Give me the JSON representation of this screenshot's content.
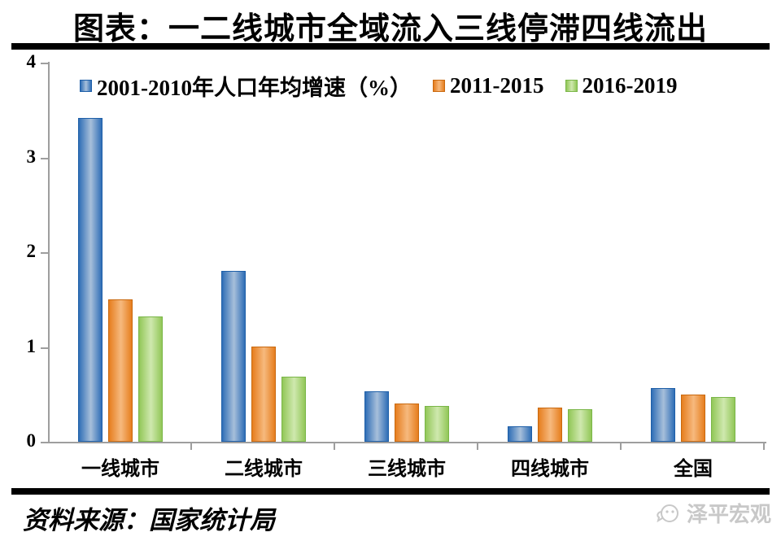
{
  "title": "图表：一二线城市全域流入三线停滞四线流出",
  "source": "资料来源：国家统计局",
  "brand": {
    "name": "泽平宏观",
    "icon": "chat-logo-icon"
  },
  "palette": {
    "blue": {
      "border": "#1e5fa8",
      "edge": "#2f6eb6",
      "mid": "#a7bfda"
    },
    "orange": {
      "border": "#c9690f",
      "edge": "#e67e1e",
      "mid": "#f6b97e"
    },
    "green": {
      "border": "#7ab648",
      "edge": "#92c758",
      "mid": "#cfe8ae"
    },
    "axis": "#9e9e9e",
    "rule": "#000000",
    "logo_gray": "#c8c8c8"
  },
  "chart_data": {
    "type": "bar",
    "title": "图表：一二线城市全域流入三线停滞四线流出",
    "categories": [
      "一线城市",
      "二线城市",
      "三线城市",
      "四线城市",
      "全国"
    ],
    "series": [
      {
        "name": "2001-2010年人口年均增速（%）",
        "color": "blue",
        "values": [
          3.42,
          1.8,
          0.53,
          0.16,
          0.57
        ]
      },
      {
        "name": "2011-2015",
        "color": "orange",
        "values": [
          1.5,
          1.0,
          0.4,
          0.36,
          0.5
        ]
      },
      {
        "name": "2016-2019",
        "color": "green",
        "values": [
          1.32,
          0.69,
          0.38,
          0.34,
          0.47
        ]
      }
    ],
    "xlabel": "",
    "ylabel": "",
    "ylim": [
      0,
      4
    ],
    "yticks": [
      0,
      1,
      2,
      3,
      4
    ],
    "grid": false,
    "legend_position": "top-left"
  }
}
